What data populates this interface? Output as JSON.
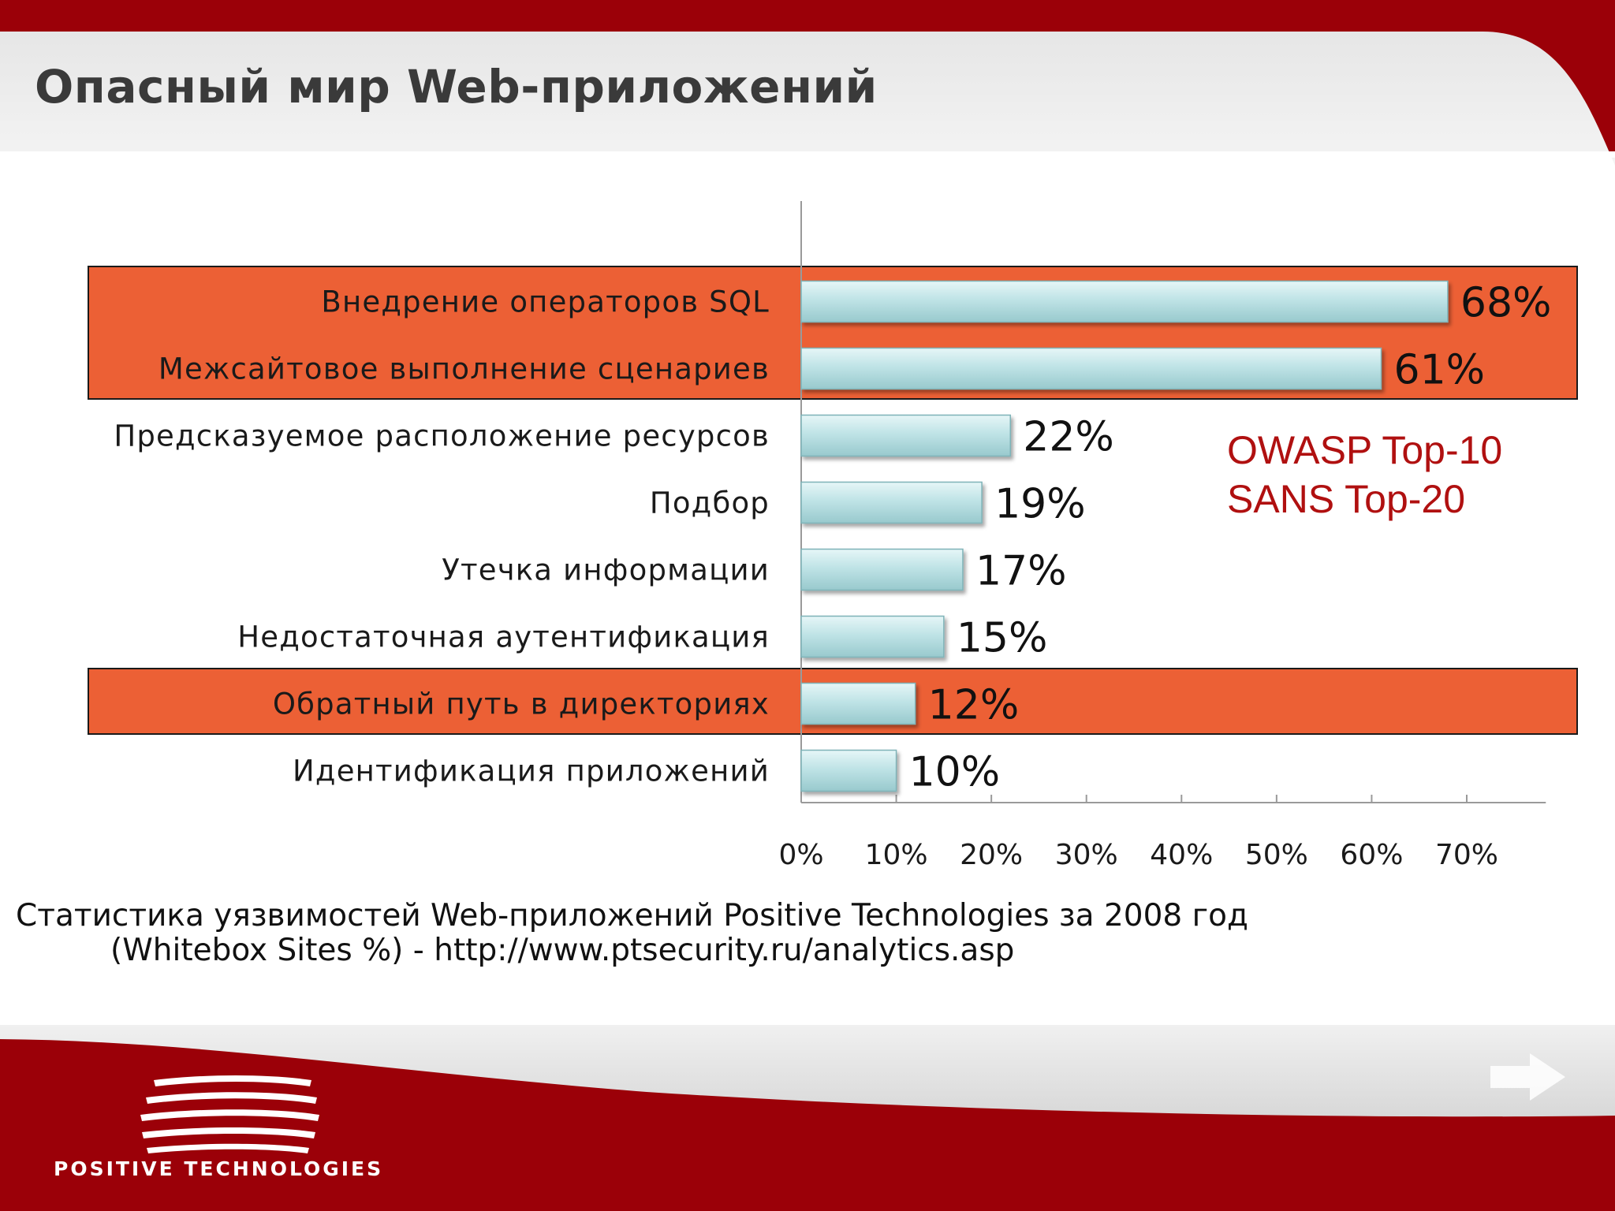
{
  "slide": {
    "title": "Опасный мир Web-приложений",
    "annotation_lines": [
      "OWASP Top-10",
      "SANS Top-20"
    ],
    "source_lines": [
      "Статистика уязвимостей Web-приложений Positive Technologies за 2008 год",
      "(Whitebox Sites %) - http://www.ptsecurity.ru/analytics.asp"
    ],
    "logo_text": "POSITIVE TECHNOLOGIES",
    "next_icon": "arrow-right-icon"
  },
  "colors": {
    "header_red": "#9b0008",
    "highlight_orange": "#ec6035",
    "bar_fill": "#bfe3e6",
    "annotation_red": "#b01010",
    "title_gray": "#3a3a3a"
  },
  "chart_data": {
    "type": "bar",
    "orientation": "horizontal",
    "categories": [
      "Внедрение операторов SQL",
      "Межсайтовое выполнение сценариев",
      "Предсказуемое расположение ресурсов",
      "Подбор",
      "Утечка информации",
      "Недостаточная аутентификация",
      "Обратный путь в директориях",
      "Идентификация приложений"
    ],
    "values": [
      68,
      61,
      22,
      19,
      17,
      15,
      12,
      10
    ],
    "value_labels": [
      "68%",
      "61%",
      "22%",
      "19%",
      "17%",
      "15%",
      "12%",
      "10%"
    ],
    "highlighted": [
      true,
      true,
      false,
      false,
      false,
      false,
      true,
      false
    ],
    "xlim": [
      0,
      75
    ],
    "xticks": [
      0,
      10,
      20,
      30,
      40,
      50,
      60,
      70
    ],
    "xtick_labels": [
      "0%",
      "10%",
      "20%",
      "30%",
      "40%",
      "50%",
      "60%",
      "70%"
    ],
    "grid": false,
    "legend": "none"
  }
}
